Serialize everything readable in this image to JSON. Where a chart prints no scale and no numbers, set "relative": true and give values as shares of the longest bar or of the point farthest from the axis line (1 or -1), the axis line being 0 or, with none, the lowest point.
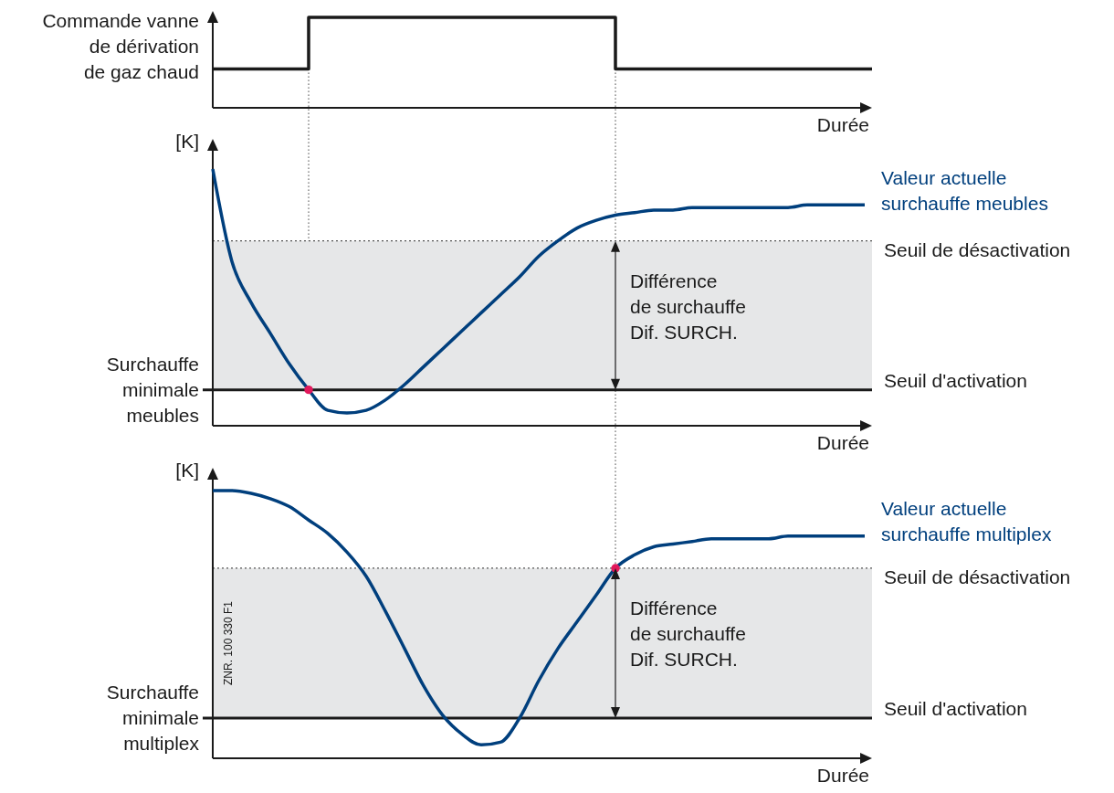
{
  "chart_data": [
    {
      "type": "step",
      "ylabel": "Commande vanne\nde dérivation\nde gaz chaud",
      "xlabel": "Durée",
      "relative": true,
      "line_style": "solid",
      "categories": [
        null,
        null,
        null,
        null,
        null,
        null,
        null,
        null,
        null,
        null,
        null,
        null,
        null,
        null,
        null,
        null,
        null,
        null,
        null,
        null,
        null,
        null,
        null,
        null,
        null,
        null,
        null,
        null,
        null,
        null,
        null,
        null,
        null,
        null,
        null
      ],
      "series": [
        {
          "color": "#1a1a1a",
          "values": [
            0.43,
            0.43,
            0.43,
            0.43,
            0.43,
            1,
            1,
            1,
            1,
            1,
            1,
            1,
            1,
            1,
            1,
            1,
            1,
            1,
            1,
            1,
            1,
            0.43,
            0.43,
            0.43,
            0.43,
            0.43,
            0.43,
            0.43,
            0.43,
            0.43,
            0.43,
            0.43,
            0.43,
            0.43,
            0.43
          ]
        }
      ]
    },
    {
      "type": "line",
      "ylabel": "[K]",
      "xlabel": "Durée",
      "relative": true,
      "line_style": "solid",
      "categories": [
        null,
        null,
        null,
        null,
        null,
        null,
        null,
        null,
        null,
        null,
        null,
        null,
        null,
        null,
        null,
        null,
        null,
        null,
        null,
        null,
        null,
        null,
        null,
        null,
        null,
        null,
        null,
        null,
        null,
        null,
        null,
        null,
        null,
        null,
        null
      ],
      "series": [
        {
          "name": "Valeur actuelle\nsurchauffe meubles",
          "color": "#003f7d",
          "values": [
            1,
            0.64,
            0.48,
            0.36,
            0.24,
            0.14,
            0.06,
            0.05,
            0.06,
            0.1,
            0.16,
            0.23,
            0.3,
            0.37,
            0.44,
            0.51,
            0.58,
            0.66,
            0.72,
            0.77,
            0.8,
            0.82,
            0.83,
            0.84,
            0.84,
            0.85,
            0.85,
            0.85,
            0.85,
            0.85,
            0.85,
            0.86,
            0.86,
            0.86,
            0.86
          ]
        },
        {
          "type": "scatter",
          "color": "#e2185b",
          "values": [
            null,
            null,
            null,
            null,
            null,
            0.14,
            null,
            null,
            null,
            null,
            null,
            null,
            null,
            null,
            null,
            null,
            null,
            null,
            null,
            null,
            null,
            null,
            null,
            null,
            null,
            null,
            null,
            null,
            null,
            null,
            null,
            null,
            null,
            null,
            null
          ]
        }
      ],
      "ref_lines": [
        {
          "axis": "y",
          "value": 0.14,
          "label": "Seuil d'activation",
          "color": "#1a1a1a",
          "line_style": "solid"
        },
        {
          "axis": "y",
          "value": 0.72,
          "label": "Seuil de désactivation",
          "color": "#555555",
          "line_style": "dotted"
        }
      ],
      "bands": [
        {
          "axis": "y",
          "from": 0.14,
          "to": 0.72,
          "color": "#e6e7e8"
        }
      ],
      "annotations": [
        "Différence\nde surchauffe\nDif. SURCH.",
        "Surchauffe\nminimale\nmeubles"
      ]
    },
    {
      "type": "line",
      "ylabel": "[K]",
      "xlabel": "Durée",
      "relative": true,
      "line_style": "solid",
      "categories": [
        null,
        null,
        null,
        null,
        null,
        null,
        null,
        null,
        null,
        null,
        null,
        null,
        null,
        null,
        null,
        null,
        null,
        null,
        null,
        null,
        null,
        null,
        null,
        null,
        null,
        null,
        null,
        null,
        null,
        null,
        null,
        null,
        null,
        null,
        null
      ],
      "series": [
        {
          "name": "Valeur actuelle\nsurchauffe multiplex",
          "color": "#003f7d",
          "values": [
            1,
            1,
            0.99,
            0.97,
            0.94,
            0.89,
            0.84,
            0.77,
            0.68,
            0.55,
            0.41,
            0.27,
            0.16,
            0.09,
            0.05,
            0.06,
            0.15,
            0.29,
            0.41,
            0.51,
            0.61,
            0.71,
            0.76,
            0.79,
            0.8,
            0.81,
            0.82,
            0.82,
            0.82,
            0.82,
            0.83,
            0.83,
            0.83,
            0.83,
            0.83
          ]
        },
        {
          "type": "scatter",
          "color": "#e2185b",
          "values": [
            null,
            null,
            null,
            null,
            null,
            null,
            null,
            null,
            null,
            null,
            null,
            null,
            null,
            null,
            null,
            null,
            null,
            null,
            null,
            null,
            null,
            0.71,
            null,
            null,
            null,
            null,
            null,
            null,
            null,
            null,
            null,
            null,
            null,
            null,
            null
          ]
        }
      ],
      "ref_lines": [
        {
          "axis": "y",
          "value": 0.15,
          "label": "Seuil d'activation",
          "color": "#1a1a1a",
          "line_style": "solid"
        },
        {
          "axis": "y",
          "value": 0.71,
          "label": "Seuil de désactivation",
          "color": "#555555",
          "line_style": "dotted"
        }
      ],
      "bands": [
        {
          "axis": "y",
          "from": 0.15,
          "to": 0.71,
          "color": "#e6e7e8"
        }
      ],
      "annotations": [
        "Différence\nde surchauffe\nDif. SURCH.",
        "Surchauffe\nminimale\nmultiplex",
        "ZNR. 100 330 F1"
      ]
    }
  ]
}
